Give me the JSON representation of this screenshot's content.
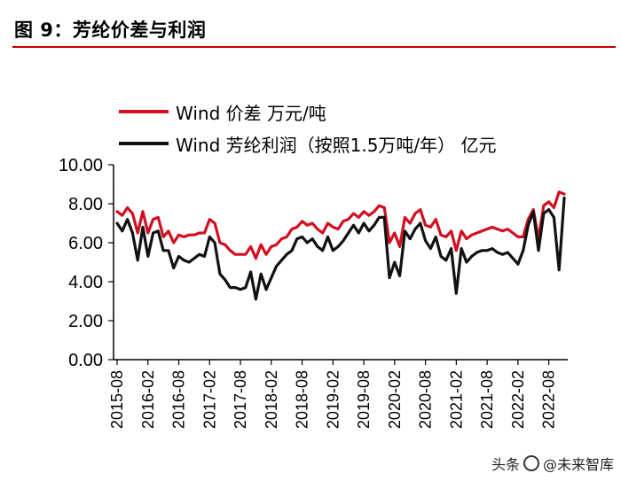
{
  "figure_title": "图 9：芳纶价差与利润",
  "watermark": {
    "source": "头条",
    "handle": "@未来智库"
  },
  "colors": {
    "series_spread": "#d01020",
    "series_profit": "#111111",
    "title_rule": "#c00000"
  },
  "chart_data": {
    "type": "line",
    "title": "",
    "xlabel": "",
    "ylabel": "",
    "ylim": [
      0,
      10
    ],
    "yticks": [
      "0.00",
      "2.00",
      "4.00",
      "6.00",
      "8.00",
      "10.00"
    ],
    "xticks": [
      "2015-08",
      "2016-02",
      "2016-08",
      "2017-02",
      "2017-08",
      "2018-02",
      "2018-08",
      "2019-02",
      "2019-08",
      "2020-02",
      "2020-08",
      "2021-02",
      "2021-08",
      "2022-02",
      "2022-08"
    ],
    "x": [
      "2015-08",
      "2015-09",
      "2015-10",
      "2015-11",
      "2015-12",
      "2016-01",
      "2016-02",
      "2016-03",
      "2016-04",
      "2016-05",
      "2016-06",
      "2016-07",
      "2016-08",
      "2016-09",
      "2016-10",
      "2016-11",
      "2016-12",
      "2017-01",
      "2017-02",
      "2017-03",
      "2017-04",
      "2017-05",
      "2017-06",
      "2017-07",
      "2017-08",
      "2017-09",
      "2017-10",
      "2017-11",
      "2017-12",
      "2018-01",
      "2018-02",
      "2018-03",
      "2018-04",
      "2018-05",
      "2018-06",
      "2018-07",
      "2018-08",
      "2018-09",
      "2018-10",
      "2018-11",
      "2018-12",
      "2019-01",
      "2019-02",
      "2019-03",
      "2019-04",
      "2019-05",
      "2019-06",
      "2019-07",
      "2019-08",
      "2019-09",
      "2019-10",
      "2019-11",
      "2019-12",
      "2020-01",
      "2020-02",
      "2020-03",
      "2020-04",
      "2020-05",
      "2020-06",
      "2020-07",
      "2020-08",
      "2020-09",
      "2020-10",
      "2020-11",
      "2020-12",
      "2021-01",
      "2021-02",
      "2021-03",
      "2021-04",
      "2021-05",
      "2021-06",
      "2021-07",
      "2021-08",
      "2021-09",
      "2021-10",
      "2021-11",
      "2021-12",
      "2022-01",
      "2022-02",
      "2022-03",
      "2022-04",
      "2022-05",
      "2022-06",
      "2022-07",
      "2022-08",
      "2022-09",
      "2022-10",
      "2022-11"
    ],
    "series": [
      {
        "name": "Wind 价差 万元/吨",
        "color": "#d01020",
        "values": [
          7.6,
          7.4,
          7.8,
          7.5,
          6.5,
          7.6,
          6.5,
          7.2,
          7.3,
          6.3,
          6.6,
          6.0,
          6.4,
          6.3,
          6.4,
          6.4,
          6.5,
          6.5,
          7.2,
          7.0,
          6.0,
          5.9,
          5.6,
          5.4,
          5.4,
          5.4,
          5.8,
          5.2,
          5.9,
          5.4,
          5.8,
          5.9,
          6.2,
          6.3,
          6.7,
          6.8,
          7.1,
          6.9,
          7.0,
          6.7,
          6.5,
          7.0,
          6.8,
          6.7,
          7.1,
          7.2,
          7.5,
          7.3,
          7.6,
          7.4,
          7.6,
          7.9,
          7.8,
          6.0,
          6.5,
          5.8,
          7.3,
          7.0,
          7.5,
          7.7,
          6.9,
          6.8,
          7.2,
          6.4,
          6.3,
          6.6,
          5.6,
          6.6,
          6.2,
          6.4,
          6.5,
          6.6,
          6.7,
          6.8,
          6.7,
          6.6,
          6.7,
          6.5,
          6.3,
          6.3,
          7.2,
          7.7,
          6.2,
          7.9,
          8.1,
          7.8,
          8.6,
          8.5
        ]
      },
      {
        "name": "Wind 芳纶利润（按照1.5万吨/年） 亿元",
        "color": "#111111",
        "values": [
          7.0,
          6.6,
          7.2,
          6.5,
          5.1,
          6.8,
          5.3,
          6.5,
          6.6,
          5.6,
          5.6,
          4.7,
          5.3,
          5.1,
          5.0,
          5.2,
          5.4,
          5.3,
          6.3,
          6.0,
          4.4,
          4.1,
          3.7,
          3.7,
          3.6,
          3.7,
          4.5,
          3.1,
          4.4,
          3.6,
          4.2,
          4.8,
          5.1,
          5.4,
          5.6,
          6.2,
          6.3,
          6.0,
          6.2,
          5.8,
          5.6,
          6.3,
          5.6,
          5.8,
          6.1,
          6.5,
          6.9,
          6.5,
          7.0,
          6.6,
          6.9,
          7.3,
          7.3,
          4.2,
          5.0,
          4.3,
          6.6,
          6.2,
          6.7,
          7.0,
          6.1,
          5.7,
          6.3,
          5.3,
          5.1,
          5.7,
          3.4,
          5.7,
          5.0,
          5.3,
          5.5,
          5.6,
          5.6,
          5.7,
          5.5,
          5.4,
          5.5,
          5.2,
          4.9,
          5.6,
          6.9,
          7.6,
          5.6,
          7.5,
          7.7,
          7.3,
          4.6,
          8.3
        ]
      }
    ]
  }
}
